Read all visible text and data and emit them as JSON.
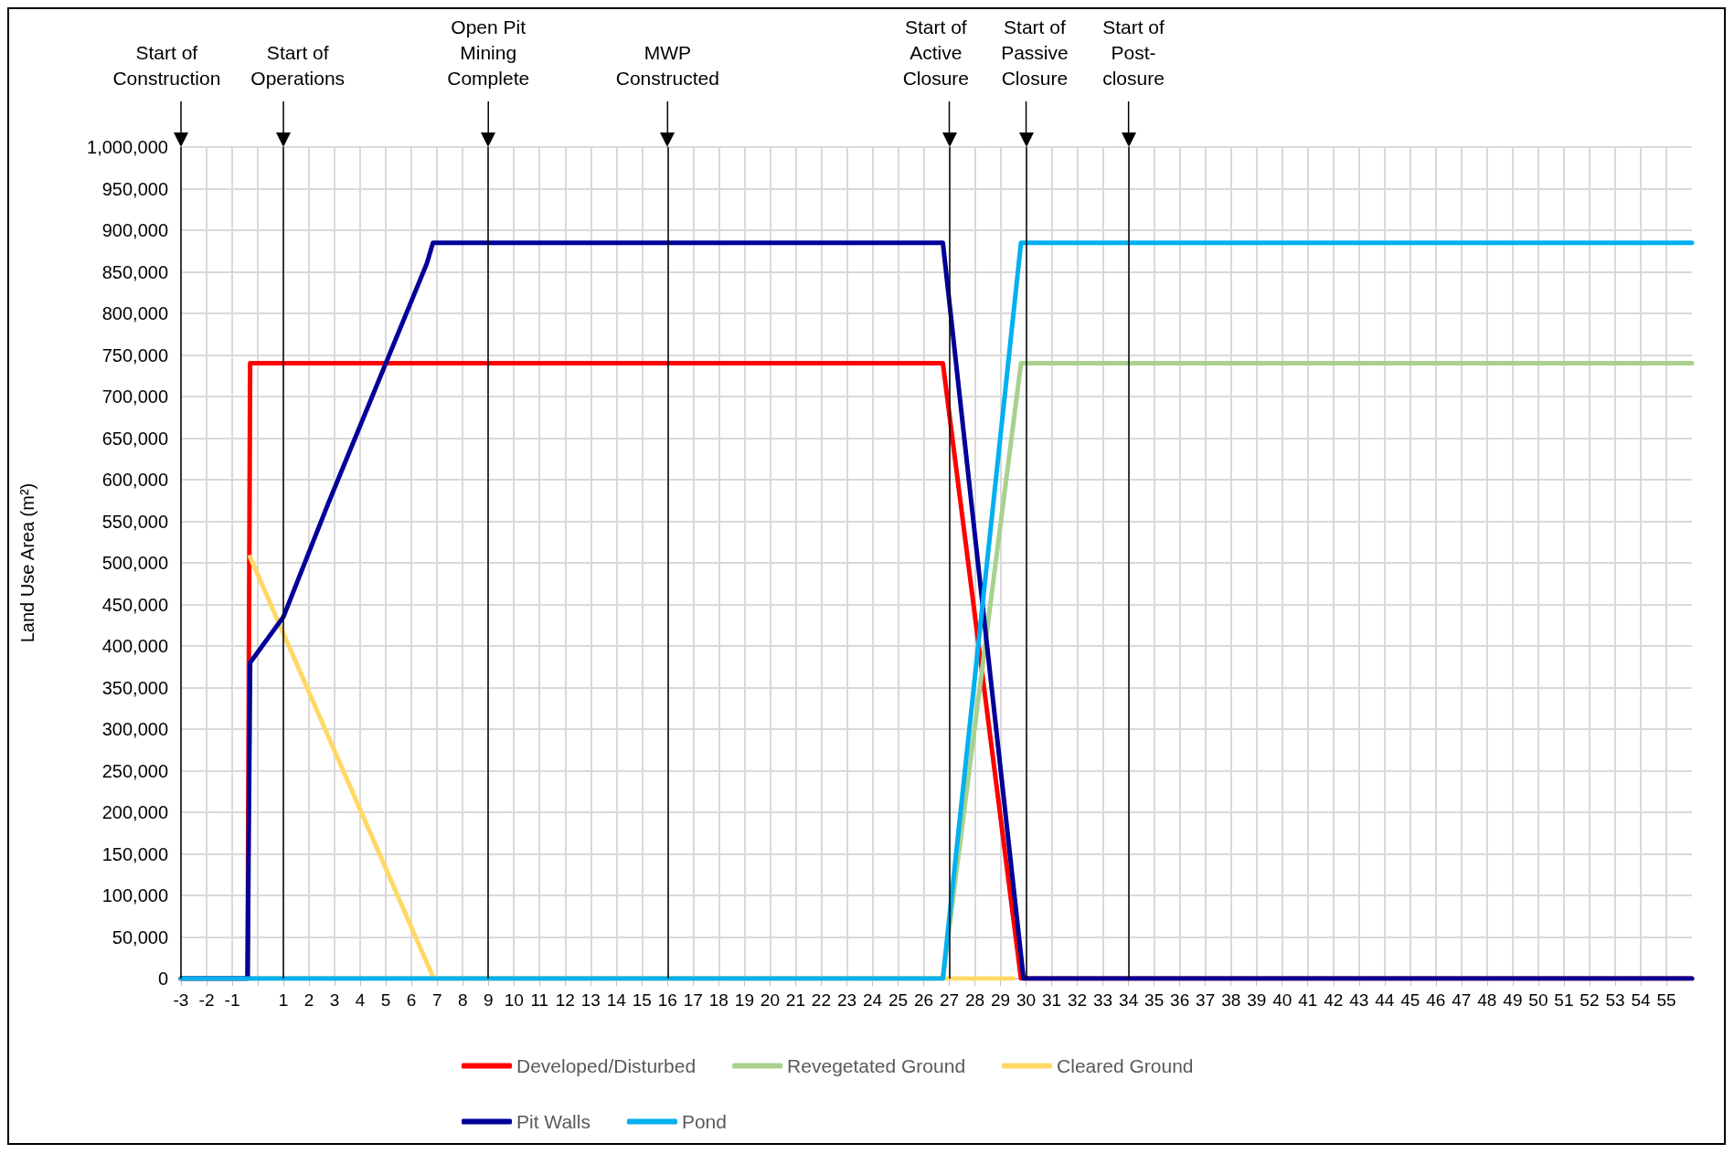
{
  "chart_data": {
    "type": "line",
    "ylabel": "Land Use Area (m²)",
    "xlim": [
      -3,
      56
    ],
    "xticks": [
      -3,
      -2,
      -1,
      {
        "value": 0,
        "label": null
      },
      1,
      2,
      3,
      4,
      5,
      6,
      7,
      8,
      9,
      10,
      11,
      12,
      13,
      14,
      15,
      16,
      17,
      18,
      19,
      20,
      21,
      22,
      23,
      24,
      25,
      26,
      27,
      28,
      29,
      30,
      31,
      32,
      33,
      34,
      35,
      36,
      37,
      38,
      39,
      40,
      41,
      42,
      43,
      44,
      45,
      46,
      47,
      48,
      49,
      50,
      51,
      52,
      53,
      54,
      55
    ],
    "ylim": [
      0,
      1000000
    ],
    "yticks": [
      {
        "value": 0,
        "label": "0"
      },
      {
        "value": 50000,
        "label": "50,000"
      },
      {
        "value": 100000,
        "label": "100,000"
      },
      {
        "value": 150000,
        "label": "150,000"
      },
      {
        "value": 200000,
        "label": "200,000"
      },
      {
        "value": 250000,
        "label": "250,000"
      },
      {
        "value": 300000,
        "label": "300,000"
      },
      {
        "value": 350000,
        "label": "350,000"
      },
      {
        "value": 400000,
        "label": "400,000"
      },
      {
        "value": 450000,
        "label": "450,000"
      },
      {
        "value": 500000,
        "label": "500,000"
      },
      {
        "value": 550000,
        "label": "550,000"
      },
      {
        "value": 600000,
        "label": "600,000"
      },
      {
        "value": 650000,
        "label": "650,000"
      },
      {
        "value": 700000,
        "label": "700,000"
      },
      {
        "value": 750000,
        "label": "750,000"
      },
      {
        "value": 800000,
        "label": "800,000"
      },
      {
        "value": 850000,
        "label": "850,000"
      },
      {
        "value": 900000,
        "label": "900,000"
      },
      {
        "value": 950000,
        "label": "950,000"
      },
      {
        "value": 1000000,
        "label": "1,000,000"
      }
    ],
    "grid": true,
    "legend": "bottom",
    "marker": "none",
    "line_style": "solid",
    "series": [
      {
        "name": "Developed/Disturbed",
        "color": "#ff0000",
        "x": [
          -3,
          -0.4,
          -0.3,
          26.75,
          29.8,
          56
        ],
        "values": [
          0,
          0,
          740000,
          740000,
          0,
          0
        ]
      },
      {
        "name": "Revegetated Ground",
        "color": "#a9d18e",
        "x": [
          -3,
          26.75,
          29.8,
          56
        ],
        "values": [
          0,
          0,
          740000,
          740000
        ]
      },
      {
        "name": "Cleared Ground",
        "color": "#ffd966",
        "x": [
          -0.3,
          6.87,
          28,
          29.5
        ],
        "values": [
          507000,
          0,
          0,
          0
        ]
      },
      {
        "name": "Pit Walls",
        "color": "#000099",
        "x": [
          -3,
          -0.4,
          -0.3,
          1,
          2.73,
          6.6,
          6.84,
          26.75,
          29.9,
          56
        ],
        "values": [
          0,
          0,
          380000,
          435000,
          570000,
          860000,
          885000,
          885000,
          0,
          0
        ]
      },
      {
        "name": "Pond",
        "color": "#00b0f0",
        "x": [
          -3,
          26.75,
          29.8,
          56
        ],
        "values": [
          0,
          0,
          885000,
          885000
        ]
      }
    ],
    "ref_lines": [
      {
        "axis": "x",
        "value": -3,
        "label": "Start of\nConstruction"
      },
      {
        "axis": "x",
        "value": 1,
        "label": "Start of\nOperations"
      },
      {
        "axis": "x",
        "value": 9,
        "label": "Open Pit\nMining\nComplete"
      },
      {
        "axis": "x",
        "value": 16,
        "label": "MWP\nConstructed"
      },
      {
        "axis": "x",
        "value": 27,
        "label": "Start of\nActive\nClosure"
      },
      {
        "axis": "x",
        "value": 30,
        "label": "Start of\nPassive\nClosure"
      },
      {
        "axis": "x",
        "value": 34,
        "label": "Start of\nPost-\nclosure"
      }
    ]
  }
}
